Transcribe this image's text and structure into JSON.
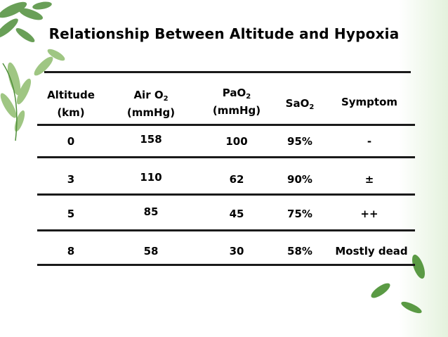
{
  "title": "Relationship Between Altitude and Hypoxia",
  "headers": {
    "altitude": [
      "Altitude",
      "(km)"
    ],
    "air_o2": {
      "main": "Air O",
      "sub": "2",
      "unit": "(mmHg)"
    },
    "pao2": {
      "main": "PaO",
      "sub": "2",
      "unit": "(mmHg)"
    },
    "sao2": {
      "main": "SaO",
      "sub": "2"
    },
    "symptom": "Symptom"
  },
  "rows": [
    {
      "altitude": "0",
      "air_o2": "158",
      "pao2": "100",
      "sao2": "95%",
      "symptom": "-"
    },
    {
      "altitude": "3",
      "air_o2": "110",
      "pao2": "62",
      "sao2": "90%",
      "symptom": "±"
    },
    {
      "altitude": "5",
      "air_o2": "85",
      "pao2": "45",
      "sao2": "75%",
      "symptom": "++"
    },
    {
      "altitude": "8",
      "air_o2": "58",
      "pao2": "30",
      "sao2": "58%",
      "symptom": "Mostly dead"
    }
  ],
  "colors": {
    "leaf_dark": "#3f7d33",
    "leaf_light": "#8fbf6a",
    "rule": "#1a1a1a"
  }
}
